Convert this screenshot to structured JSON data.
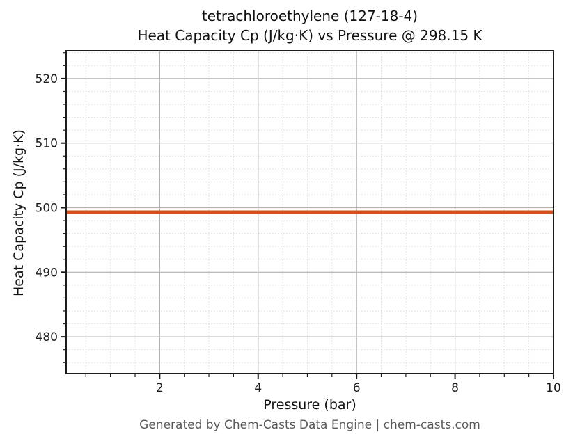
{
  "chart_data": {
    "type": "line",
    "title": "tetrachloroethylene (127-18-4)",
    "subtitle": "Heat Capacity Cp (J/kg·K) vs Pressure @ 298.15 K",
    "xlabel": "Pressure (bar)",
    "ylabel": "Heat Capacity Cp (J/kg·K)",
    "xlim": [
      0.1,
      10
    ],
    "ylim": [
      474.3,
      524.3
    ],
    "x_ticks": [
      2,
      4,
      6,
      8,
      10
    ],
    "y_ticks": [
      480,
      490,
      500,
      510,
      520
    ],
    "x_minor_step": 0.5,
    "y_minor_step": 2,
    "grid": true,
    "legend_position": "none",
    "series": [
      {
        "name": "Heat Capacity Cp",
        "x": [
          0.1,
          10
        ],
        "y": [
          499.3,
          499.3
        ],
        "color": "#d4511e",
        "line_width": 5
      }
    ],
    "footer": "Generated by Chem-Casts Data Engine | chem-casts.com",
    "colors": {
      "spine": "#1c1c1c",
      "major_grid": "#b0b0b0",
      "minor_grid": "#dadada",
      "tick_label": "#1c1c1c",
      "title": "#111111",
      "footer": "#595959",
      "background": "#ffffff"
    }
  }
}
